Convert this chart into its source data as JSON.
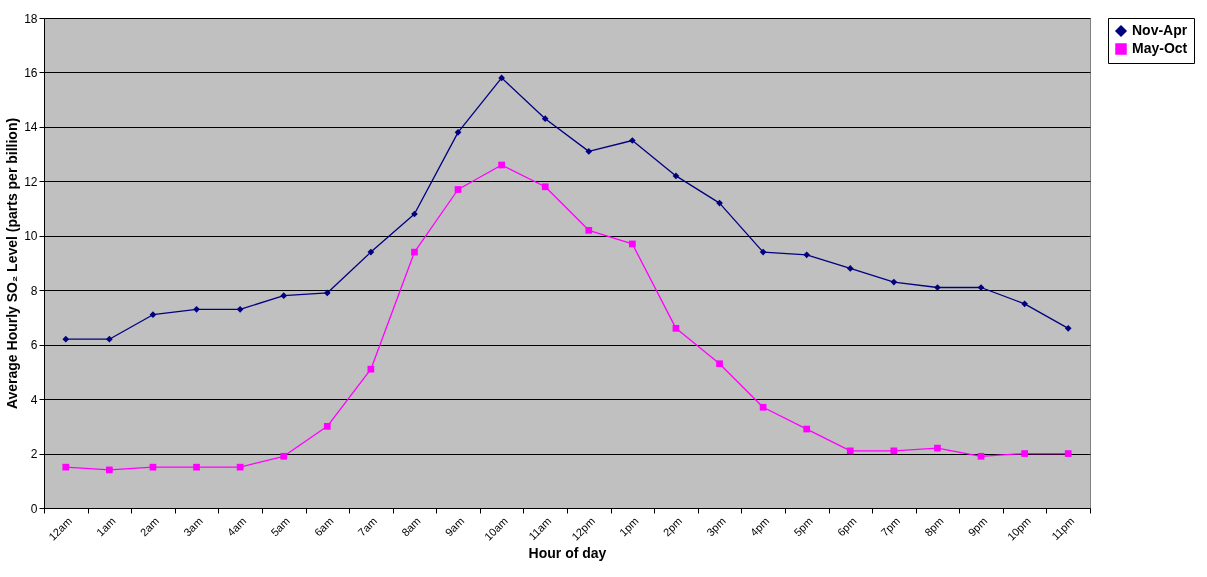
{
  "chart_data": {
    "type": "line",
    "xlabel": "Hour of day",
    "ylabel": "Average Hourly SO₂ Level (parts per billion)",
    "categories": [
      "12am",
      "1am",
      "2am",
      "3am",
      "4am",
      "5am",
      "6am",
      "7am",
      "8am",
      "9am",
      "10am",
      "11am",
      "12pm",
      "1pm",
      "2pm",
      "3pm",
      "4pm",
      "5pm",
      "6pm",
      "7pm",
      "8pm",
      "9pm",
      "10pm",
      "11pm"
    ],
    "series": [
      {
        "name": "Nov-Apr",
        "color": "#000080",
        "marker": "diamond",
        "values": [
          6.2,
          6.2,
          7.1,
          7.3,
          7.3,
          7.8,
          7.9,
          9.4,
          10.8,
          13.8,
          15.8,
          14.3,
          13.1,
          13.5,
          12.2,
          11.2,
          9.4,
          9.3,
          8.8,
          8.3,
          8.1,
          8.1,
          7.5,
          6.6
        ]
      },
      {
        "name": "May-Oct",
        "color": "#ff00ff",
        "marker": "square",
        "values": [
          1.5,
          1.4,
          1.5,
          1.5,
          1.5,
          1.9,
          3.0,
          5.1,
          9.4,
          11.7,
          12.6,
          11.8,
          10.2,
          9.7,
          6.6,
          5.3,
          3.7,
          2.9,
          2.1,
          2.1,
          2.2,
          1.9,
          2.0,
          2.0
        ]
      }
    ],
    "ylim": [
      0,
      18
    ],
    "yticks": [
      0,
      2,
      4,
      6,
      8,
      10,
      12,
      14,
      16,
      18
    ],
    "grid": "y",
    "legend": "right",
    "line_style": "solid"
  }
}
